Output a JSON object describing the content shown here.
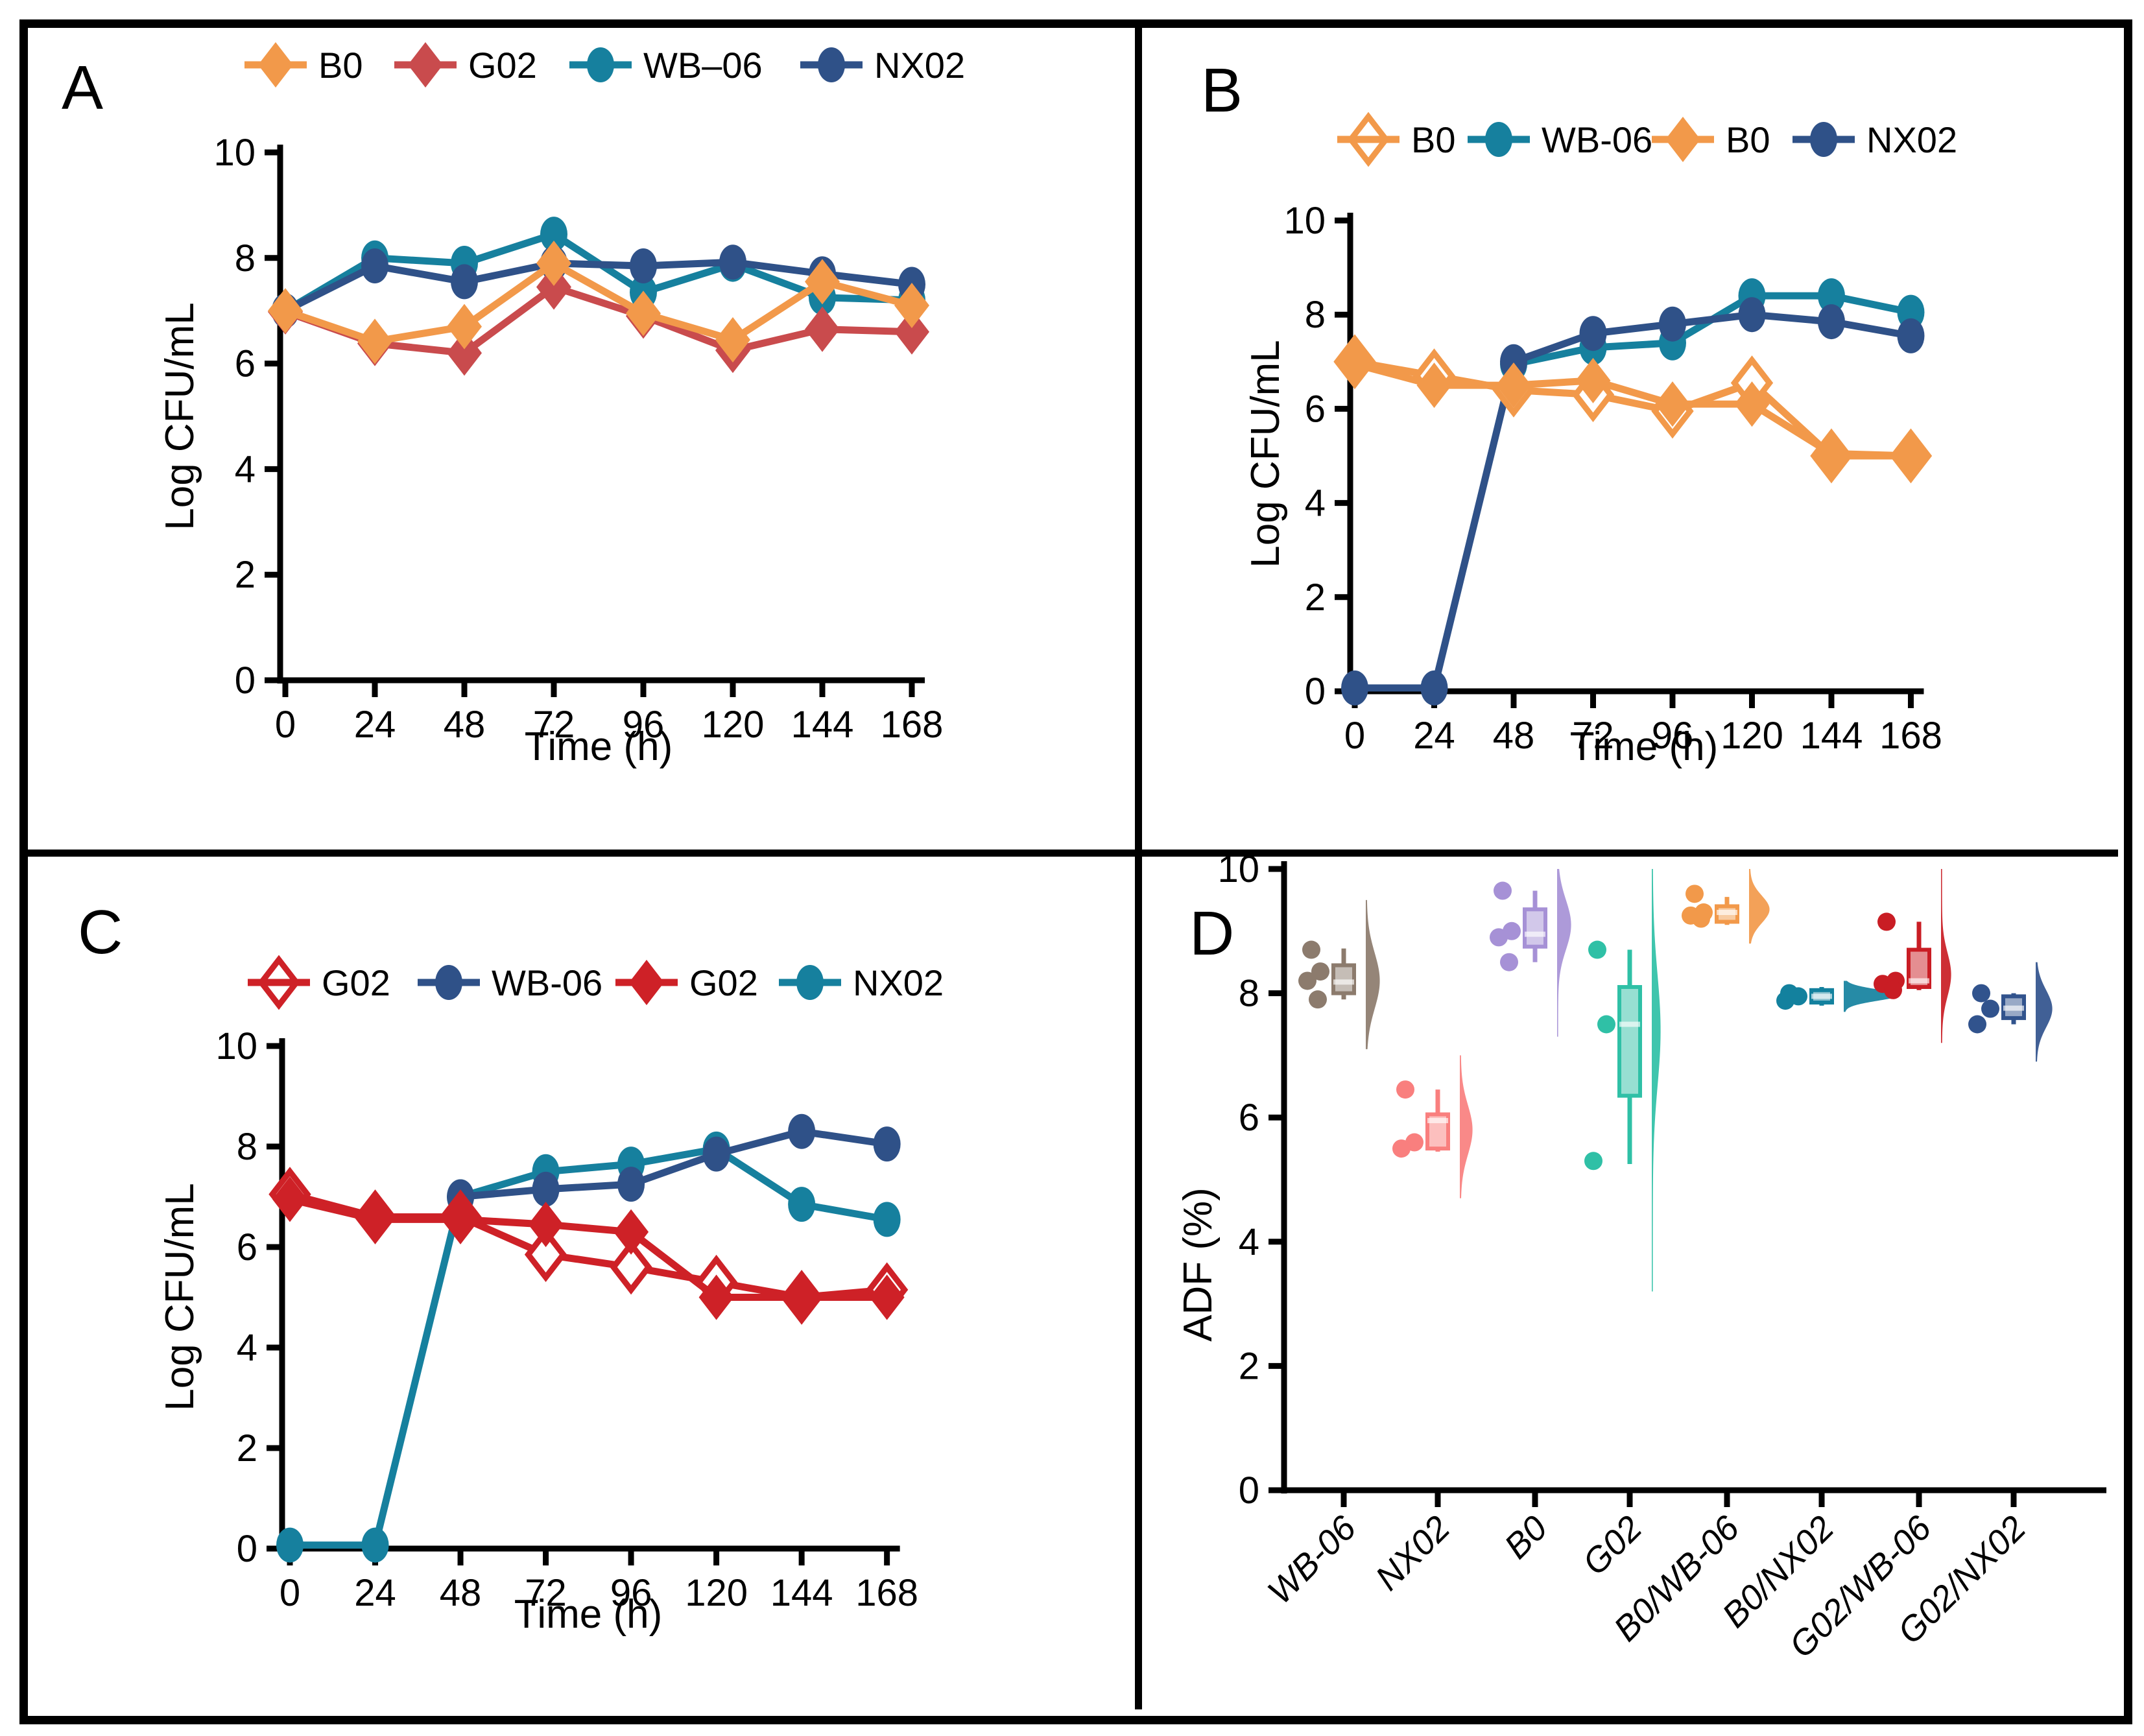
{
  "figure": {
    "background": "#ffffff",
    "border_color": "#000000"
  },
  "panel_letters": {
    "A": "A",
    "B": "B",
    "C": "C",
    "D": "D"
  },
  "chart_data": [
    {
      "panel": "A",
      "type": "line",
      "xlabel": "Time (h)",
      "ylabel": "Log CFU/mL",
      "ylim": [
        0,
        10
      ],
      "y_ticks": [
        0,
        2,
        4,
        6,
        8,
        10
      ],
      "x": [
        0,
        24,
        48,
        72,
        96,
        120,
        144,
        168
      ],
      "series": [
        {
          "name": "B0",
          "marker": "diamond",
          "open": false,
          "color": "#F2994A",
          "values": [
            7.0,
            6.42,
            6.7,
            7.9,
            6.95,
            6.45,
            7.55,
            7.1
          ]
        },
        {
          "name": "G02",
          "marker": "diamond",
          "open": false,
          "color": "#C94B4D",
          "values": [
            6.98,
            6.38,
            6.2,
            7.45,
            6.9,
            6.25,
            6.65,
            6.6
          ]
        },
        {
          "name": "WB–06",
          "marker": "circle",
          "open": false,
          "color": "#16809E",
          "values": [
            7.0,
            8.0,
            7.9,
            8.45,
            7.35,
            7.88,
            7.25,
            7.2
          ]
        },
        {
          "name": "NX02",
          "marker": "circle",
          "open": false,
          "color": "#2F5188",
          "values": [
            7.0,
            7.85,
            7.55,
            7.9,
            7.85,
            7.92,
            7.7,
            7.5
          ]
        }
      ]
    },
    {
      "panel": "B",
      "type": "line",
      "xlabel": "Time (h)",
      "ylabel": "Log CFU/mL",
      "ylim": [
        0,
        10
      ],
      "y_ticks": [
        0,
        2,
        4,
        6,
        8,
        10
      ],
      "x": [
        0,
        24,
        48,
        72,
        96,
        120,
        144,
        168
      ],
      "series": [
        {
          "name": "B0",
          "marker": "diamond",
          "open": true,
          "color": "#F2994A",
          "values": [
            7.0,
            6.7,
            6.4,
            6.3,
            5.95,
            6.55,
            5.0,
            5.0
          ]
        },
        {
          "name": "WB-06",
          "marker": "circle",
          "open": false,
          "color": "#16809E",
          "values": [
            null,
            null,
            6.95,
            7.3,
            7.4,
            8.4,
            8.4,
            8.05
          ]
        },
        {
          "name": "B0",
          "marker": "diamond",
          "open": false,
          "color": "#F2994A",
          "values": [
            6.95,
            6.5,
            6.5,
            6.6,
            6.1,
            6.1,
            5.05,
            5.0
          ]
        },
        {
          "name": "NX02",
          "marker": "circle",
          "open": false,
          "color": "#2F5188",
          "values": [
            0.07,
            0.07,
            7.0,
            7.6,
            7.8,
            8.0,
            7.85,
            7.55
          ]
        }
      ]
    },
    {
      "panel": "C",
      "type": "line",
      "xlabel": "Time (h)",
      "ylabel": "Log CFU/mL",
      "ylim": [
        0,
        10
      ],
      "y_ticks": [
        0,
        2,
        4,
        6,
        8,
        10
      ],
      "x": [
        0,
        24,
        48,
        72,
        96,
        120,
        144,
        168
      ],
      "series": [
        {
          "name": "G02",
          "marker": "diamond",
          "open": true,
          "color": "#CE2127",
          "values": [
            7.05,
            6.6,
            6.6,
            5.85,
            5.6,
            5.3,
            5.0,
            5.15
          ]
        },
        {
          "name": "WB-06",
          "marker": "circle",
          "open": false,
          "color": "#2F5188",
          "values": [
            null,
            null,
            7.0,
            7.15,
            7.25,
            7.85,
            8.3,
            8.05
          ]
        },
        {
          "name": "G02",
          "marker": "diamond",
          "open": false,
          "color": "#CE2127",
          "values": [
            6.95,
            6.55,
            6.55,
            6.45,
            6.3,
            5.0,
            5.0,
            5.0
          ]
        },
        {
          "name": "NX02",
          "marker": "circle",
          "open": false,
          "color": "#16809E",
          "values": [
            0.07,
            0.07,
            7.0,
            7.5,
            7.65,
            7.95,
            6.85,
            6.55
          ]
        }
      ]
    },
    {
      "panel": "D",
      "type": "box-violin",
      "ylabel": "ADF (%)",
      "ylim": [
        0,
        10
      ],
      "y_ticks": [
        0,
        2,
        4,
        6,
        8,
        10
      ],
      "groups": [
        {
          "label": "WB-06",
          "color": "#8C7B6D",
          "points": [
            8.7,
            8.35,
            8.2,
            7.9
          ],
          "box": {
            "q1": 8.0,
            "median": 8.18,
            "q3": 8.45,
            "lo": 7.9,
            "hi": 8.72
          },
          "violin": {
            "lo": 7.1,
            "hi": 9.5,
            "peak": 8.2,
            "sig": 0.45,
            "w": 20
          }
        },
        {
          "label": "NX02",
          "color": "#F97F7E",
          "points": [
            6.45,
            5.6,
            5.5
          ],
          "box": {
            "q1": 5.5,
            "median": 5.95,
            "q3": 6.05,
            "lo": 5.45,
            "hi": 6.45
          },
          "violin": {
            "lo": 4.7,
            "hi": 7.0,
            "peak": 5.8,
            "sig": 0.4,
            "w": 18
          }
        },
        {
          "label": "B0",
          "color": "#A691D6",
          "points": [
            9.65,
            9.0,
            8.9,
            8.5
          ],
          "box": {
            "q1": 8.75,
            "median": 8.95,
            "q3": 9.35,
            "lo": 8.5,
            "hi": 9.65
          },
          "violin": {
            "lo": 7.3,
            "hi": 10.0,
            "peak": 9.1,
            "sig": 0.4,
            "w": 20
          }
        },
        {
          "label": "G02",
          "color": "#2FC0A6",
          "points": [
            8.7,
            7.5,
            5.3
          ],
          "box": {
            "q1": 6.35,
            "median": 7.5,
            "q3": 8.1,
            "lo": 5.25,
            "hi": 8.7
          },
          "violin": {
            "lo": 3.2,
            "hi": 10.0,
            "peak": 7.4,
            "sig": 0.9,
            "w": 12
          }
        },
        {
          "label": "B0/WB-06",
          "color": "#F2994A",
          "points": [
            9.6,
            9.3,
            9.25,
            9.2
          ],
          "box": {
            "q1": 9.15,
            "median": 9.3,
            "q3": 9.4,
            "lo": 9.1,
            "hi": 9.55
          },
          "violin": {
            "lo": 8.8,
            "hi": 10.0,
            "peak": 9.35,
            "sig": 0.22,
            "w": 30
          }
        },
        {
          "label": "B0/NX02",
          "color": "#13819E",
          "points": [
            8.0,
            7.95,
            7.88
          ],
          "box": {
            "q1": 7.85,
            "median": 7.95,
            "q3": 8.05,
            "lo": 7.8,
            "hi": 8.1
          },
          "violin": {
            "lo": 7.7,
            "hi": 8.2,
            "peak": 7.97,
            "sig": 0.09,
            "w": 85
          }
        },
        {
          "label": "G02/WB-06",
          "color": "#C91D24",
          "points": [
            9.15,
            8.2,
            8.15,
            8.05
          ],
          "box": {
            "q1": 8.1,
            "median": 8.2,
            "q3": 8.7,
            "lo": 8.05,
            "hi": 9.15
          },
          "violin": {
            "lo": 7.2,
            "hi": 10.0,
            "peak": 8.3,
            "sig": 0.35,
            "w": 14
          }
        },
        {
          "label": "G02/NX02",
          "color": "#31538D",
          "points": [
            8.0,
            7.75,
            7.5
          ],
          "box": {
            "q1": 7.6,
            "median": 7.76,
            "q3": 7.95,
            "lo": 7.5,
            "hi": 8.0
          },
          "violin": {
            "lo": 6.9,
            "hi": 8.5,
            "peak": 7.75,
            "sig": 0.3,
            "w": 24
          }
        }
      ]
    }
  ]
}
